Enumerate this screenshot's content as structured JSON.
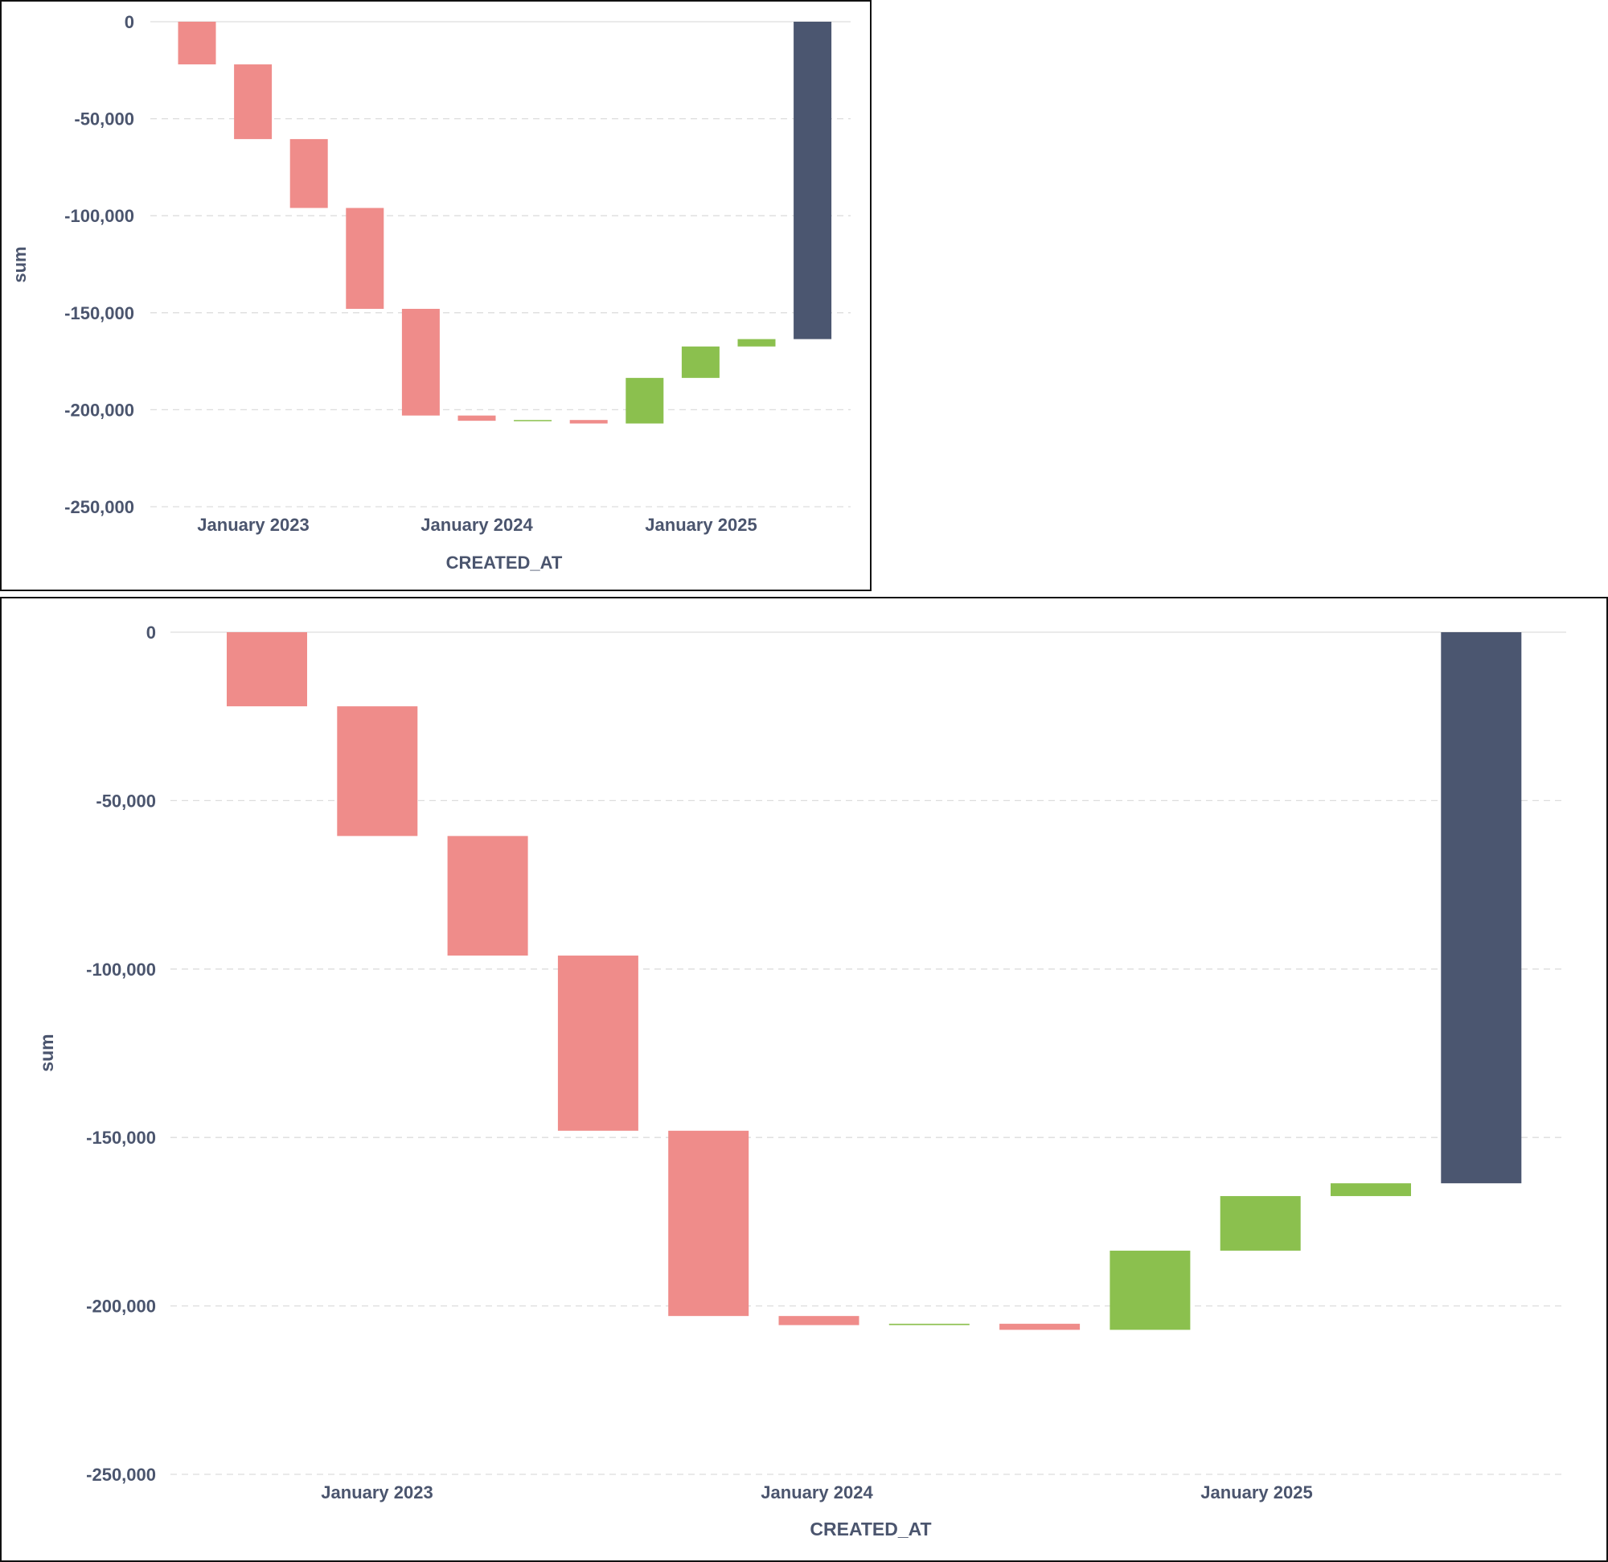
{
  "colors": {
    "decrease": "#ef8c8a",
    "increase": "#8bc04e",
    "total": "#4b5670",
    "text": "#4b556e",
    "grid": "#dddddd"
  },
  "chart_data": [
    {
      "type": "bar",
      "subtype": "waterfall",
      "xlabel": "CREATED_AT",
      "ylabel": "sum",
      "ylim": [
        -250000,
        0
      ],
      "yticks": [
        0,
        -50000,
        -100000,
        -150000,
        -200000,
        -250000
      ],
      "ytick_labels": [
        "0",
        "-50,000",
        "-100,000",
        "-150,000",
        "-200,000",
        "-250,000"
      ],
      "xtick_labels": [
        "January 2023",
        "January 2024",
        "January 2025"
      ],
      "grid": true,
      "steps": [
        {
          "delta": -22000,
          "kind": "decrease"
        },
        {
          "delta": -38500,
          "kind": "decrease"
        },
        {
          "delta": -35500,
          "kind": "decrease"
        },
        {
          "delta": -52000,
          "kind": "decrease"
        },
        {
          "delta": -55000,
          "kind": "decrease"
        },
        {
          "delta": -2700,
          "kind": "decrease"
        },
        {
          "delta": 400,
          "kind": "increase"
        },
        {
          "delta": -1800,
          "kind": "decrease"
        },
        {
          "delta": 23500,
          "kind": "increase"
        },
        {
          "delta": 16200,
          "kind": "increase"
        },
        {
          "delta": 3800,
          "kind": "increase"
        },
        {
          "delta": -163600,
          "kind": "total"
        }
      ]
    },
    {
      "type": "bar",
      "subtype": "waterfall",
      "xlabel": "CREATED_AT",
      "ylabel": "sum",
      "ylim": [
        -250000,
        0
      ],
      "yticks": [
        0,
        -50000,
        -100000,
        -150000,
        -200000,
        -250000
      ],
      "ytick_labels": [
        "0",
        "-50,000",
        "-100,000",
        "-150,000",
        "-200,000",
        "-250,000"
      ],
      "xtick_labels": [
        "January 2023",
        "January 2024",
        "January 2025"
      ],
      "grid": true,
      "steps": [
        {
          "delta": -22000,
          "kind": "decrease"
        },
        {
          "delta": -38500,
          "kind": "decrease"
        },
        {
          "delta": -35500,
          "kind": "decrease"
        },
        {
          "delta": -52000,
          "kind": "decrease"
        },
        {
          "delta": -55000,
          "kind": "decrease"
        },
        {
          "delta": -2700,
          "kind": "decrease"
        },
        {
          "delta": 400,
          "kind": "increase"
        },
        {
          "delta": -1800,
          "kind": "decrease"
        },
        {
          "delta": 23500,
          "kind": "increase"
        },
        {
          "delta": 16200,
          "kind": "increase"
        },
        {
          "delta": 3800,
          "kind": "increase"
        },
        {
          "delta": -163600,
          "kind": "total"
        }
      ]
    }
  ]
}
